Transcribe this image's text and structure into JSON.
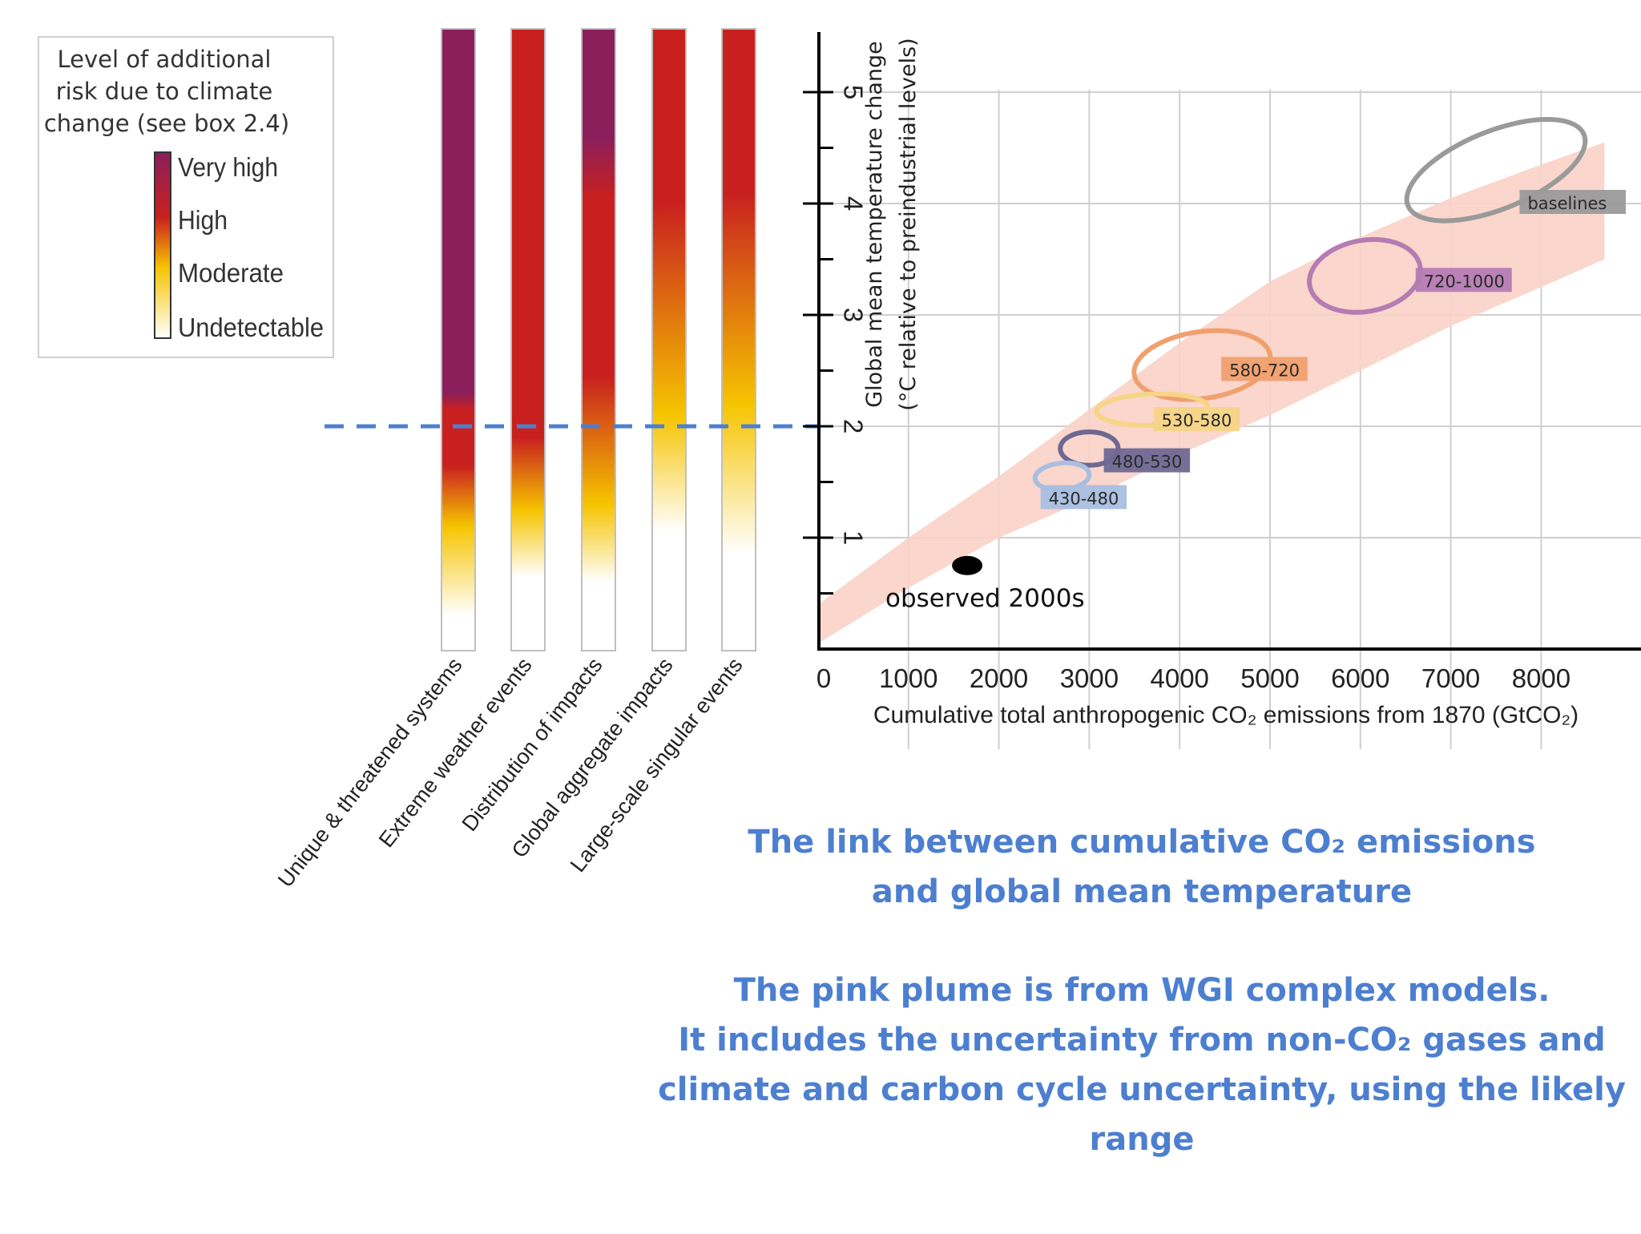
{
  "legend": {
    "title_lines": [
      "Level of additional",
      "risk due to climate",
      "change (see box 2.4)"
    ],
    "levels": [
      "Very high",
      "High",
      "Moderate",
      "Undetectable"
    ]
  },
  "risk_bars": {
    "categories": [
      "Unique & threatened systems",
      "Extreme weather events",
      "Distribution of impacts",
      "Global aggregate impacts",
      "Large-scale singular events"
    ],
    "colors": {
      "very_high": "#8a1f5c",
      "high": "#c8201f",
      "moderate": "#f6c400",
      "undetectable": "#ffffff"
    },
    "gradient_stops": [
      [
        [
          0,
          "very_high"
        ],
        [
          2.3,
          "very_high"
        ],
        [
          2.15,
          "high"
        ],
        [
          1.65,
          "high"
        ],
        [
          1.1,
          "moderate"
        ],
        [
          0.3,
          "undetectable"
        ]
      ],
      [
        [
          0,
          "high"
        ],
        [
          1.9,
          "high"
        ],
        [
          1.25,
          "moderate"
        ],
        [
          0.65,
          "undetectable"
        ]
      ],
      [
        [
          0,
          "very_high"
        ],
        [
          4.6,
          "very_high"
        ],
        [
          4.05,
          "high"
        ],
        [
          2.45,
          "high"
        ],
        [
          1.3,
          "moderate"
        ],
        [
          0.6,
          "undetectable"
        ]
      ],
      [
        [
          0,
          "high"
        ],
        [
          4.0,
          "high"
        ],
        [
          2.1,
          "moderate"
        ],
        [
          1.05,
          "undetectable"
        ]
      ],
      [
        [
          0,
          "high"
        ],
        [
          4.1,
          "high"
        ],
        [
          2.2,
          "moderate"
        ],
        [
          0.85,
          "undetectable"
        ]
      ]
    ],
    "threshold_line_y": 2
  },
  "chart_data": {
    "type": "scatter",
    "title": "",
    "xlabel": "Cumulative total anthropogenic CO₂ emissions from 1870 (GtCO₂)",
    "ylabel_lines": [
      "Global mean temperature change",
      "(°C relative to preindustrial levels)"
    ],
    "xlim": [
      0,
      9000
    ],
    "ylim": [
      0,
      5.5
    ],
    "x_ticks": [
      0,
      1000,
      2000,
      3000,
      4000,
      5000,
      6000,
      7000,
      8000
    ],
    "y_ticks": [
      1,
      2,
      3,
      4,
      5
    ],
    "grid": true,
    "plume": {
      "upper": [
        [
          0,
          0.4
        ],
        [
          1000,
          1.0
        ],
        [
          2000,
          1.55
        ],
        [
          3000,
          2.15
        ],
        [
          4000,
          2.75
        ],
        [
          5000,
          3.3
        ],
        [
          6000,
          3.7
        ],
        [
          7000,
          4.05
        ],
        [
          8000,
          4.35
        ],
        [
          8700,
          4.55
        ]
      ],
      "lower": [
        [
          8700,
          3.5
        ],
        [
          8000,
          3.25
        ],
        [
          7000,
          2.9
        ],
        [
          6000,
          2.5
        ],
        [
          5000,
          2.1
        ],
        [
          4000,
          1.75
        ],
        [
          3000,
          1.35
        ],
        [
          2000,
          1.0
        ],
        [
          1000,
          0.55
        ],
        [
          0,
          0.05
        ]
      ]
    },
    "observed": {
      "label": "observed 2000s",
      "x": 1650,
      "y": 0.75
    },
    "scenarios": [
      {
        "label": "baselines",
        "cx": 7500,
        "cy": 4.3,
        "rx": 1050,
        "ry": 0.35,
        "angle_deg": -22,
        "color": "#9a9a9a",
        "label_x": 7850,
        "label_y": 4.0
      },
      {
        "label": "720-1000",
        "cx": 6050,
        "cy": 3.35,
        "rx": 620,
        "ry": 0.32,
        "angle_deg": -10,
        "color": "#b57cb3",
        "label_x": 6700,
        "label_y": 3.3
      },
      {
        "label": "580-720",
        "cx": 4250,
        "cy": 2.55,
        "rx": 760,
        "ry": 0.3,
        "angle_deg": -8,
        "color": "#f0a06e",
        "label_x": 4550,
        "label_y": 2.5
      },
      {
        "label": "530-580",
        "cx": 3700,
        "cy": 2.15,
        "rx": 620,
        "ry": 0.14,
        "angle_deg": -2,
        "color": "#f6d587",
        "label_x": 3800,
        "label_y": 2.05
      },
      {
        "label": "480-530",
        "cx": 3000,
        "cy": 1.8,
        "rx": 320,
        "ry": 0.15,
        "angle_deg": 0,
        "color": "#6e6892",
        "label_x": 3250,
        "label_y": 1.68
      },
      {
        "label": "430-480",
        "cx": 2700,
        "cy": 1.55,
        "rx": 300,
        "ry": 0.12,
        "angle_deg": -5,
        "color": "#a9bfe2",
        "label_x": 2550,
        "label_y": 1.35
      }
    ]
  },
  "caption": {
    "block1": [
      "The link between cumulative CO₂ emissions",
      "and global mean temperature"
    ],
    "block2": [
      "The pink plume is from WGI complex models.",
      "It includes the uncertainty from non-CO₂ gases and",
      "climate and carbon cycle uncertainty, using the likely",
      "range"
    ]
  }
}
